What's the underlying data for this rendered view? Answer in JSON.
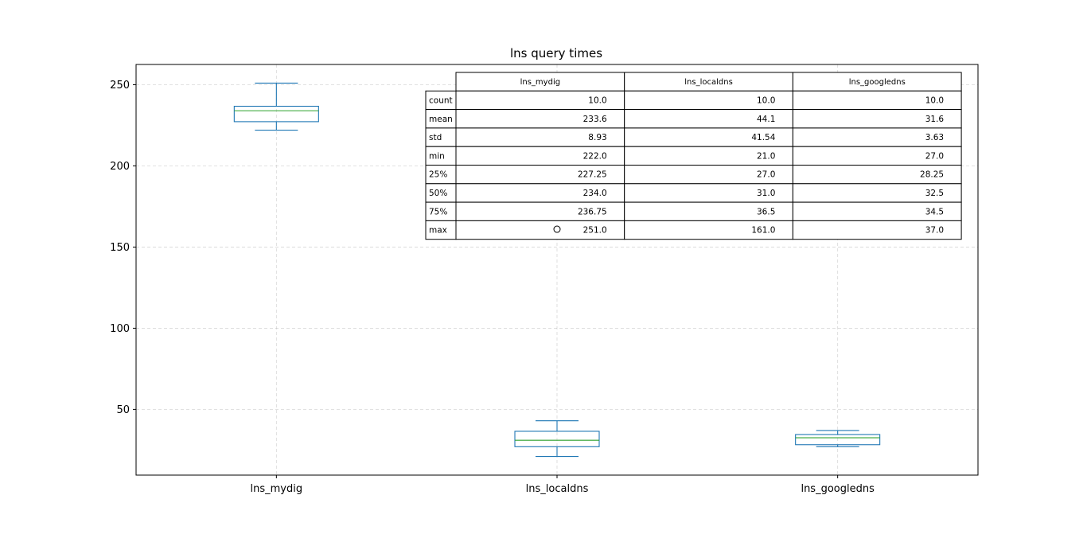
{
  "chart_data": {
    "type": "box",
    "title": "lns query times",
    "xlabel": "",
    "ylabel": "",
    "categories": [
      "lns_mydig",
      "lns_localdns",
      "lns_googledns"
    ],
    "ylim": [
      9.5,
      262.5
    ],
    "yticks": [
      50,
      100,
      150,
      200,
      250
    ],
    "grid": true,
    "grid_style": "dashed",
    "colors": {
      "box": "#1f77b4",
      "median": "#2ca02c",
      "flier": "#000000"
    },
    "boxes": [
      {
        "name": "lns_mydig",
        "whislo": 222.0,
        "q1": 227.25,
        "med": 234.0,
        "q3": 236.75,
        "whishi": 251.0,
        "fliers": []
      },
      {
        "name": "lns_localdns",
        "whislo": 21.0,
        "q1": 27.0,
        "med": 31.0,
        "q3": 36.5,
        "whishi": 43.0,
        "fliers": [
          161.0
        ]
      },
      {
        "name": "lns_googledns",
        "whislo": 27.0,
        "q1": 28.25,
        "med": 32.5,
        "q3": 34.5,
        "whishi": 37.0,
        "fliers": []
      }
    ],
    "table": {
      "columns": [
        "lns_mydig",
        "lns_localdns",
        "lns_googledns"
      ],
      "rows": [
        {
          "label": "count",
          "values": [
            "10.0",
            "10.0",
            "10.0"
          ]
        },
        {
          "label": "mean",
          "values": [
            "233.6",
            "44.1",
            "31.6"
          ]
        },
        {
          "label": "std",
          "values": [
            "8.93",
            "41.54",
            "3.63"
          ]
        },
        {
          "label": "min",
          "values": [
            "222.0",
            "21.0",
            "27.0"
          ]
        },
        {
          "label": "25%",
          "values": [
            "227.25",
            "27.0",
            "28.25"
          ]
        },
        {
          "label": "50%",
          "values": [
            "234.0",
            "31.0",
            "32.5"
          ]
        },
        {
          "label": "75%",
          "values": [
            "236.75",
            "36.5",
            "34.5"
          ]
        },
        {
          "label": "max",
          "values": [
            "251.0",
            "161.0",
            "37.0"
          ]
        }
      ]
    }
  }
}
